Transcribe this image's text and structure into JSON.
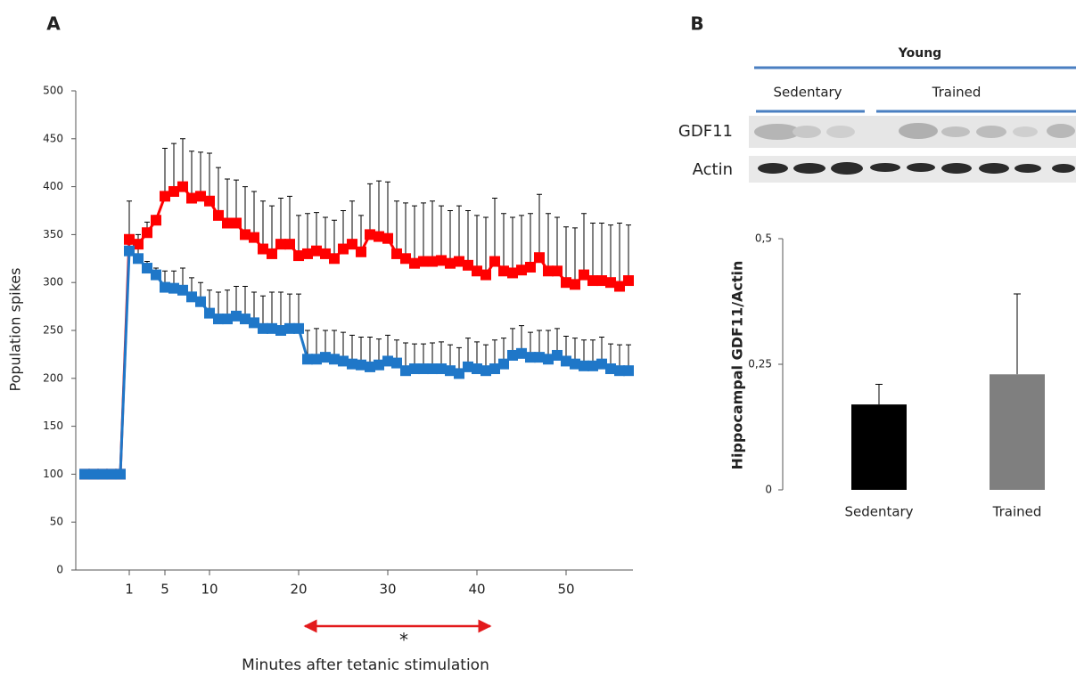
{
  "chart_data": [
    {
      "type": "line",
      "panel_label": "A",
      "y_label": "Population spikes",
      "x_label": "Minutes after tetanic stimulation",
      "annotation": "*",
      "x": [
        -4,
        -3,
        -2,
        -1,
        0,
        1,
        2,
        3,
        4,
        5,
        6,
        7,
        8,
        9,
        10,
        11,
        12,
        13,
        14,
        15,
        16,
        17,
        18,
        19,
        20,
        21,
        22,
        23,
        24,
        25,
        26,
        27,
        28,
        29,
        30,
        31,
        32,
        33,
        34,
        35,
        36,
        37,
        38,
        39,
        40,
        41,
        42,
        43,
        44,
        45,
        46,
        47,
        48,
        49,
        50,
        51,
        52,
        53,
        54,
        55,
        56,
        57
      ],
      "xlim": [
        -5,
        57.5
      ],
      "xticks": [
        1,
        5,
        10,
        20,
        30,
        40,
        50
      ],
      "ylim": [
        0,
        500
      ],
      "yticks": [
        0,
        50,
        100,
        150,
        200,
        250,
        300,
        350,
        400,
        450,
        500
      ],
      "series": [
        {
          "name": "Trained",
          "color": "#ff0000",
          "values": [
            100,
            100,
            100,
            100,
            100,
            345,
            340,
            352,
            365,
            390,
            395,
            400,
            388,
            390,
            385,
            370,
            362,
            362,
            350,
            347,
            335,
            330,
            340,
            340,
            328,
            330,
            333,
            330,
            325,
            335,
            340,
            332,
            350,
            348,
            346,
            330,
            325,
            320,
            322,
            322,
            323,
            320,
            322,
            318,
            312,
            308,
            322,
            312,
            310,
            313,
            316,
            326,
            312,
            312,
            300,
            298,
            308,
            302,
            302,
            300,
            296,
            302
          ],
          "errors": [
            null,
            null,
            null,
            null,
            null,
            40,
            10,
            11,
            5,
            50,
            50,
            50,
            49,
            46,
            50,
            50,
            46,
            45,
            50,
            48,
            50,
            50,
            48,
            50,
            42,
            42,
            40,
            38,
            40,
            40,
            45,
            38,
            53,
            58,
            59,
            55,
            58,
            60,
            61,
            63,
            57,
            55,
            58,
            57,
            58,
            60,
            66,
            60,
            58,
            57,
            56,
            66,
            60,
            56,
            58,
            59,
            64,
            60,
            60,
            60,
            66,
            58
          ]
        },
        {
          "name": "Sedentary",
          "color": "#1f77c8",
          "values": [
            100,
            100,
            100,
            100,
            100,
            333,
            325,
            315,
            308,
            295,
            294,
            292,
            285,
            280,
            268,
            262,
            262,
            265,
            262,
            258,
            252,
            252,
            250,
            252,
            252,
            220,
            220,
            222,
            220,
            218,
            215,
            214,
            212,
            214,
            218,
            216,
            208,
            210,
            210,
            210,
            210,
            208,
            205,
            212,
            210,
            208,
            210,
            215,
            224,
            226,
            222,
            222,
            220,
            224,
            218,
            215,
            213,
            213,
            215,
            210,
            208,
            208
          ],
          "errors": [
            null,
            null,
            null,
            null,
            null,
            7,
            15,
            7,
            7,
            17,
            18,
            23,
            20,
            20,
            24,
            28,
            30,
            31,
            34,
            32,
            34,
            38,
            40,
            36,
            36,
            30,
            32,
            28,
            30,
            30,
            30,
            29,
            31,
            27,
            27,
            24,
            29,
            26,
            26,
            27,
            28,
            27,
            27,
            30,
            28,
            27,
            30,
            27,
            28,
            29,
            26,
            28,
            30,
            28,
            26,
            27,
            27,
            27,
            28,
            26,
            27,
            27
          ]
        }
      ]
    },
    {
      "type": "bar",
      "panel_label": "B",
      "blot": {
        "group": "Young",
        "lanes": [
          "Sedentary",
          "Trained"
        ],
        "rows": [
          "GDF11",
          "Actin"
        ]
      },
      "y_label": "Hippocampal GDF11/Actin",
      "categories": [
        "Sedentary",
        "Trained"
      ],
      "values": [
        0.17,
        0.23
      ],
      "errors": [
        0.04,
        0.16
      ],
      "colors": [
        "#000000",
        "#7f7f7f"
      ],
      "ylim": [
        0,
        0.5
      ],
      "yticks": [
        0,
        {
          "value": 0.25,
          "label": "0,25"
        },
        {
          "value": 0.5,
          "label": "0,5"
        }
      ]
    }
  ]
}
